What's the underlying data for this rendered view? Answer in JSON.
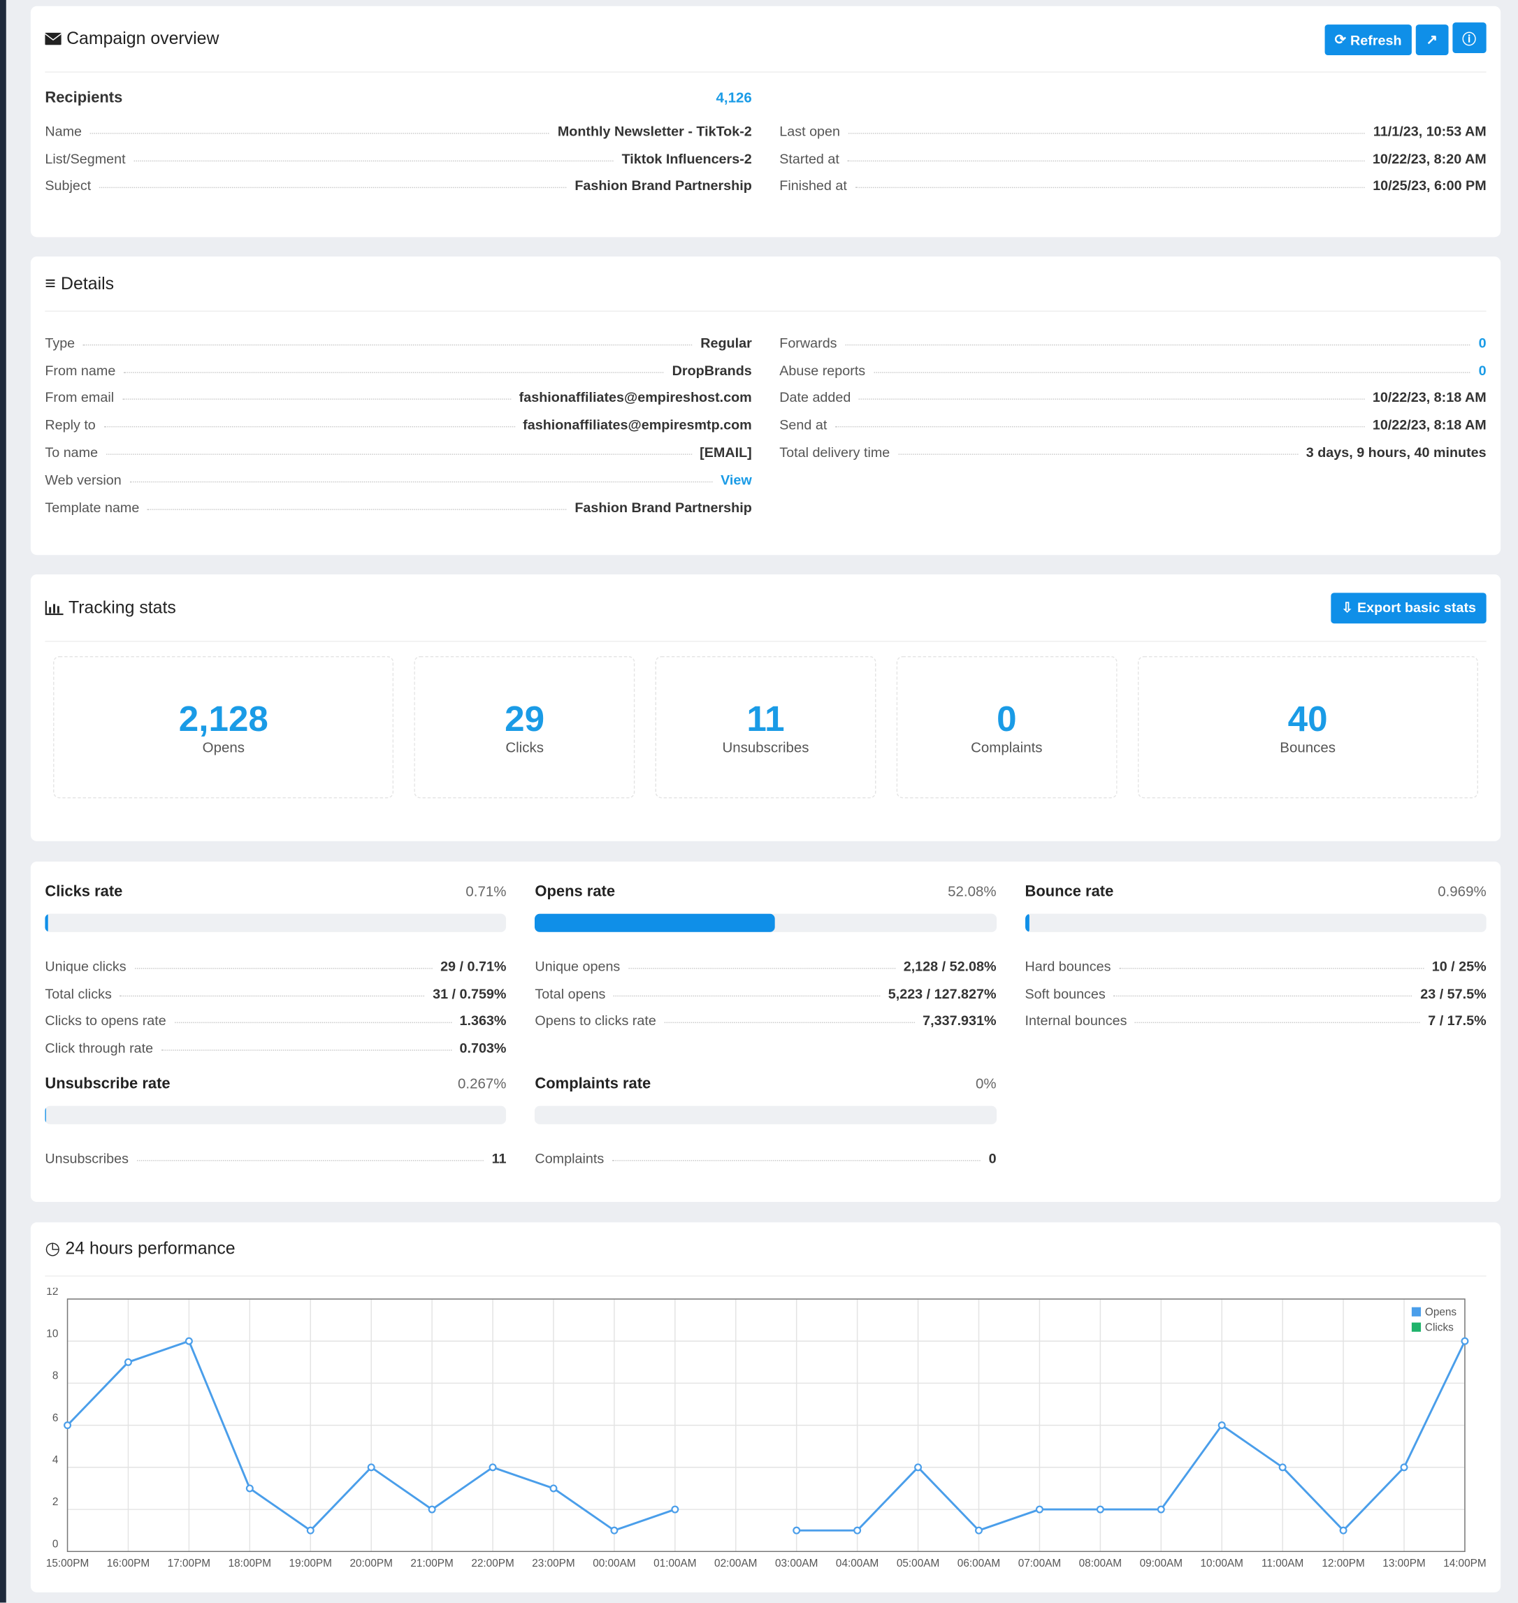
{
  "overview": {
    "title": "Campaign overview",
    "refresh": "Refresh",
    "recipients_label": "Recipients",
    "recipients": "4,126",
    "left": [
      {
        "label": "Name",
        "value": "Monthly Newsletter - TikTok-2"
      },
      {
        "label": "List/Segment",
        "value": "Tiktok Influencers-2"
      },
      {
        "label": "Subject",
        "value": "Fashion Brand Partnership"
      }
    ],
    "right": [
      {
        "label": "Last open",
        "value": "11/1/23, 10:53 AM"
      },
      {
        "label": "Started at",
        "value": "10/22/23, 8:20 AM"
      },
      {
        "label": "Finished at",
        "value": "10/25/23, 6:00 PM"
      }
    ]
  },
  "details": {
    "title": "Details",
    "left": [
      {
        "label": "Type",
        "value": "Regular"
      },
      {
        "label": "From name",
        "value": "DropBrands"
      },
      {
        "label": "From email",
        "value": "fashionaffiliates@empireshost.com"
      },
      {
        "label": "Reply to",
        "value": "fashionaffiliates@empiresmtp.com"
      },
      {
        "label": "To name",
        "value": "[EMAIL]"
      },
      {
        "label": "Web version",
        "value": "View",
        "link": true
      },
      {
        "label": "Template name",
        "value": "Fashion Brand Partnership"
      }
    ],
    "right": [
      {
        "label": "Forwards",
        "value": "0",
        "color": "#1a9be6"
      },
      {
        "label": "Abuse reports",
        "value": "0",
        "color": "#1a9be6"
      },
      {
        "label": "Date added",
        "value": "10/22/23, 8:18 AM"
      },
      {
        "label": "Send at",
        "value": "10/22/23, 8:18 AM"
      },
      {
        "label": "Total delivery time",
        "value": "3 days, 9 hours, 40 minutes"
      }
    ]
  },
  "tracking": {
    "title": "Tracking stats",
    "export": "Export basic stats",
    "stats": [
      {
        "value": "2,128",
        "label": "Opens"
      },
      {
        "value": "29",
        "label": "Clicks"
      },
      {
        "value": "11",
        "label": "Unsubscribes"
      },
      {
        "value": "0",
        "label": "Complaints"
      },
      {
        "value": "40",
        "label": "Bounces"
      }
    ]
  },
  "rates": [
    {
      "title": "Clicks rate",
      "value": "0.71%",
      "percent": 0.71,
      "rows": [
        {
          "label": "Unique clicks",
          "value": "29 / 0.71%"
        },
        {
          "label": "Total clicks",
          "value": "31 / 0.759%"
        },
        {
          "label": "Clicks to opens rate",
          "value": "1.363%"
        },
        {
          "label": "Click through rate",
          "value": "0.703%"
        }
      ]
    },
    {
      "title": "Opens rate",
      "value": "52.08%",
      "percent": 52.08,
      "rows": [
        {
          "label": "Unique opens",
          "value": "2,128 / 52.08%"
        },
        {
          "label": "Total opens",
          "value": "5,223 / 127.827%"
        },
        {
          "label": "Opens to clicks rate",
          "value": "7,337.931%"
        }
      ]
    },
    {
      "title": "Bounce rate",
      "value": "0.969%",
      "percent": 0.969,
      "rows": [
        {
          "label": "Hard bounces",
          "value": "10 / 25%"
        },
        {
          "label": "Soft bounces",
          "value": "23 / 57.5%"
        },
        {
          "label": "Internal bounces",
          "value": "7 / 17.5%"
        }
      ]
    },
    {
      "title": "Unsubscribe rate",
      "value": "0.267%",
      "percent": 0.267,
      "rows": [
        {
          "label": "Unsubscribes",
          "value": "11"
        }
      ]
    },
    {
      "title": "Complaints rate",
      "value": "0%",
      "percent": 0,
      "rows": [
        {
          "label": "Complaints",
          "value": "0"
        }
      ]
    }
  ],
  "performance": {
    "title": "24 hours performance"
  },
  "chart_data": {
    "type": "line",
    "categories": [
      "15:00PM",
      "16:00PM",
      "17:00PM",
      "18:00PM",
      "19:00PM",
      "20:00PM",
      "21:00PM",
      "22:00PM",
      "23:00PM",
      "00:00AM",
      "01:00AM",
      "02:00AM",
      "03:00AM",
      "04:00AM",
      "05:00AM",
      "06:00AM",
      "07:00AM",
      "08:00AM",
      "09:00AM",
      "10:00AM",
      "11:00AM",
      "12:00PM",
      "13:00PM",
      "14:00PM"
    ],
    "series": [
      {
        "name": "Opens",
        "color": "#4a9eea",
        "values": [
          6,
          9,
          10,
          3,
          1,
          4,
          2,
          4,
          3,
          1,
          2,
          null,
          1,
          1,
          4,
          1,
          2,
          2,
          2,
          6,
          4,
          1,
          4,
          10
        ]
      },
      {
        "name": "Clicks",
        "color": "#1fb36b",
        "values": [
          null,
          null,
          null,
          null,
          null,
          null,
          null,
          null,
          null,
          null,
          null,
          null,
          null,
          null,
          null,
          null,
          null,
          null,
          null,
          null,
          null,
          null,
          null,
          null
        ]
      }
    ],
    "ylim": [
      0,
      12
    ],
    "yticks": [
      0,
      2,
      4,
      6,
      8,
      10,
      12
    ],
    "grid": true,
    "legend": "top-right"
  }
}
